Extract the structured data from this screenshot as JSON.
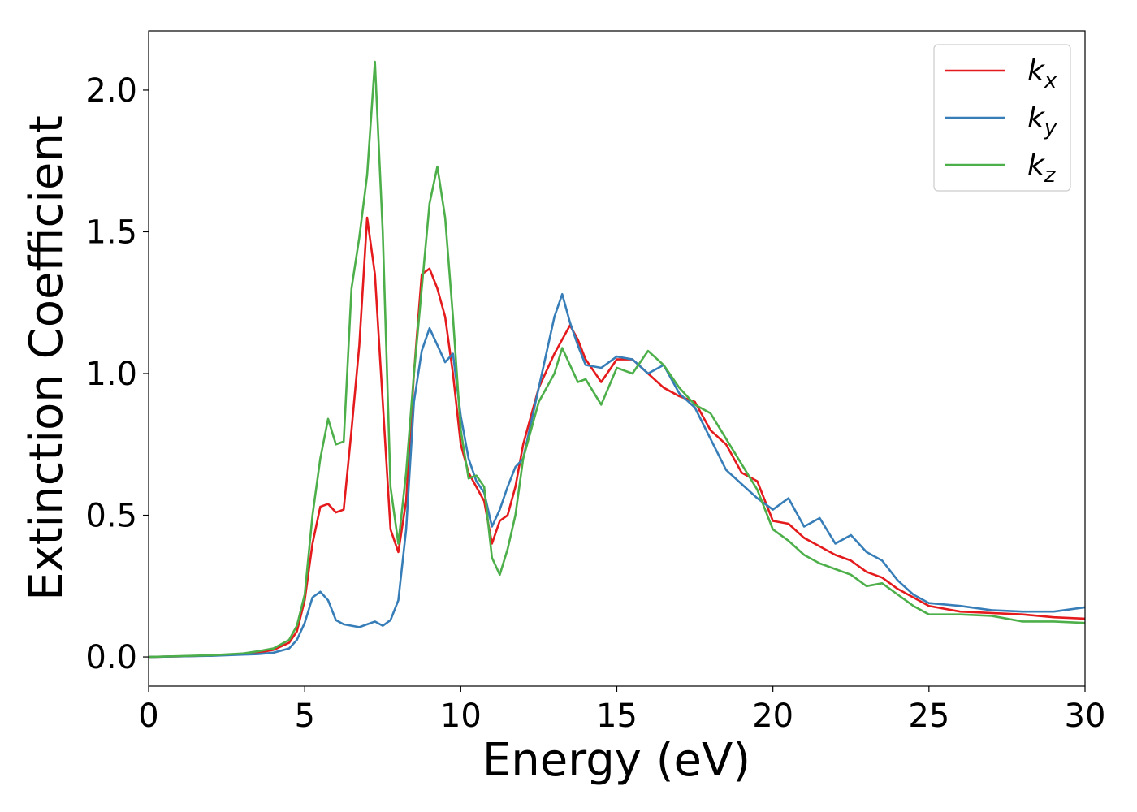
{
  "chart_data": {
    "type": "line",
    "xlabel": "Energy (eV)",
    "ylabel": "Extinction Coefficient",
    "x": [
      0,
      1,
      2,
      3,
      3.5,
      4,
      4.5,
      4.75,
      5,
      5.25,
      5.5,
      5.75,
      6,
      6.25,
      6.5,
      6.75,
      7,
      7.25,
      7.5,
      7.75,
      8,
      8.25,
      8.5,
      8.75,
      9,
      9.25,
      9.5,
      9.75,
      10,
      10.25,
      10.5,
      10.75,
      11,
      11.25,
      11.5,
      11.75,
      12,
      12.5,
      13,
      13.25,
      13.5,
      13.75,
      14,
      14.5,
      15,
      15.5,
      16,
      16.5,
      17,
      17.5,
      18,
      18.5,
      19,
      19.5,
      20,
      20.5,
      21,
      21.5,
      22,
      22.5,
      23,
      23.5,
      24,
      24.5,
      25,
      26,
      27,
      28,
      29,
      30
    ],
    "series": [
      {
        "name": "kx",
        "color": "#e41a1c",
        "values": [
          0,
          0.002,
          0.005,
          0.01,
          0.015,
          0.025,
          0.05,
          0.09,
          0.2,
          0.4,
          0.53,
          0.54,
          0.51,
          0.52,
          0.8,
          1.1,
          1.55,
          1.35,
          0.9,
          0.45,
          0.37,
          0.55,
          1.0,
          1.35,
          1.37,
          1.3,
          1.2,
          1.0,
          0.75,
          0.65,
          0.6,
          0.55,
          0.4,
          0.48,
          0.5,
          0.6,
          0.75,
          0.95,
          1.07,
          1.12,
          1.17,
          1.12,
          1.05,
          0.97,
          1.05,
          1.05,
          1.0,
          0.95,
          0.92,
          0.9,
          0.8,
          0.75,
          0.65,
          0.62,
          0.48,
          0.47,
          0.42,
          0.39,
          0.36,
          0.34,
          0.3,
          0.28,
          0.24,
          0.21,
          0.18,
          0.16,
          0.155,
          0.15,
          0.14,
          0.135
        ]
      },
      {
        "name": "ky",
        "color": "#377eb8",
        "values": [
          0,
          0.002,
          0.004,
          0.008,
          0.01,
          0.015,
          0.03,
          0.06,
          0.12,
          0.21,
          0.23,
          0.2,
          0.13,
          0.115,
          0.11,
          0.105,
          0.115,
          0.125,
          0.11,
          0.13,
          0.2,
          0.45,
          0.9,
          1.08,
          1.16,
          1.1,
          1.04,
          1.07,
          0.85,
          0.7,
          0.62,
          0.58,
          0.46,
          0.52,
          0.6,
          0.67,
          0.7,
          0.95,
          1.2,
          1.28,
          1.18,
          1.1,
          1.03,
          1.02,
          1.06,
          1.05,
          1.0,
          1.03,
          0.93,
          0.88,
          0.77,
          0.66,
          0.61,
          0.56,
          0.52,
          0.56,
          0.46,
          0.49,
          0.4,
          0.43,
          0.37,
          0.34,
          0.27,
          0.22,
          0.19,
          0.18,
          0.165,
          0.16,
          0.16,
          0.175
        ]
      },
      {
        "name": "kz",
        "color": "#4daf4a",
        "values": [
          0,
          0.003,
          0.006,
          0.012,
          0.02,
          0.03,
          0.06,
          0.11,
          0.22,
          0.5,
          0.7,
          0.84,
          0.75,
          0.76,
          1.3,
          1.48,
          1.7,
          2.1,
          1.5,
          0.6,
          0.4,
          0.65,
          1.0,
          1.3,
          1.6,
          1.73,
          1.55,
          1.2,
          0.8,
          0.63,
          0.64,
          0.6,
          0.35,
          0.29,
          0.38,
          0.5,
          0.7,
          0.9,
          1.0,
          1.09,
          1.03,
          0.97,
          0.98,
          0.89,
          1.02,
          1.0,
          1.08,
          1.03,
          0.95,
          0.89,
          0.86,
          0.77,
          0.68,
          0.59,
          0.45,
          0.41,
          0.36,
          0.33,
          0.31,
          0.29,
          0.25,
          0.26,
          0.22,
          0.18,
          0.15,
          0.15,
          0.145,
          0.125,
          0.125,
          0.12
        ]
      }
    ],
    "xlim": [
      0,
      30
    ],
    "xticks": [
      0,
      5,
      10,
      15,
      20,
      25,
      30
    ],
    "ylim": [
      -0.103,
      2.209
    ],
    "yticks": [
      {
        "value": 0,
        "label": "0.0"
      },
      {
        "value": 0.5,
        "label": "0.5"
      },
      {
        "value": 1,
        "label": "1.0"
      },
      {
        "value": 1.5,
        "label": "1.5"
      },
      {
        "value": 2,
        "label": "2.0"
      }
    ],
    "legend": "upper right",
    "grid": false
  }
}
